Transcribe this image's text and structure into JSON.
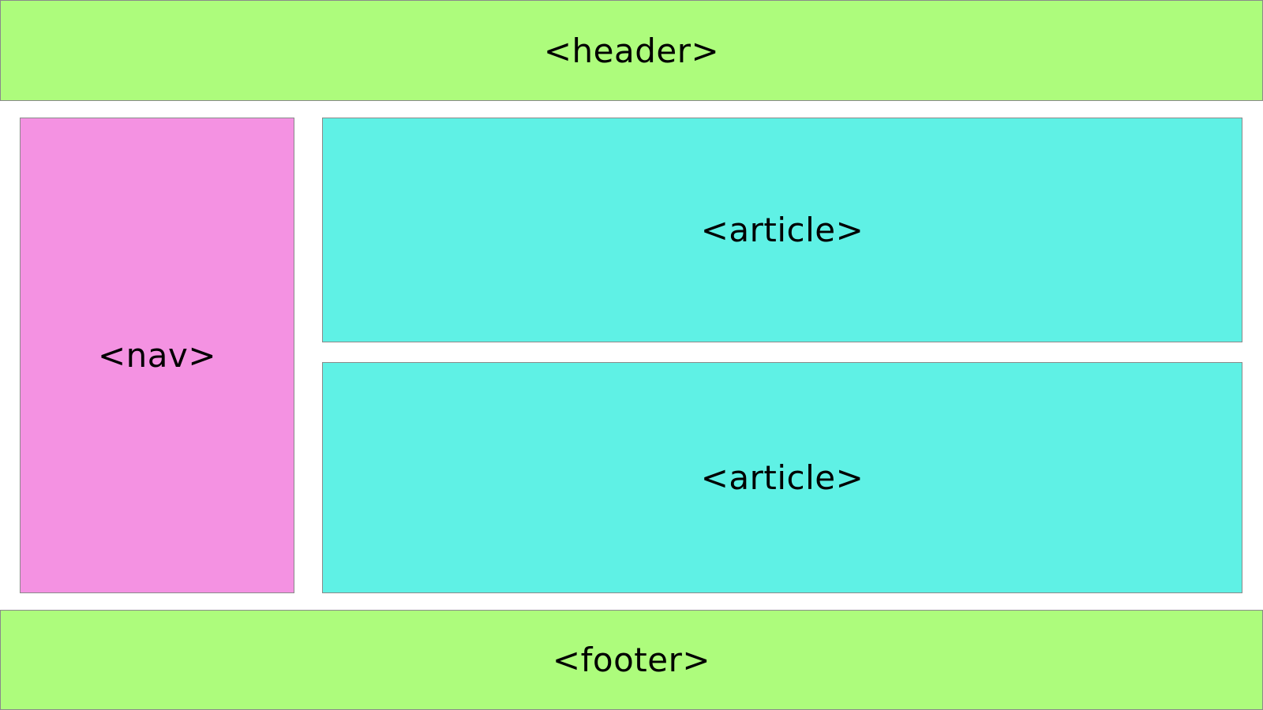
{
  "header": {
    "label": "<header>",
    "color": "#adfc7c"
  },
  "nav": {
    "label": "<nav>",
    "color": "#f492e2"
  },
  "articles": [
    {
      "label": "<article>",
      "color": "#5ff1e5"
    },
    {
      "label": "<article>",
      "color": "#5ff1e5"
    }
  ],
  "footer": {
    "label": "<footer>",
    "color": "#adfc7c"
  }
}
